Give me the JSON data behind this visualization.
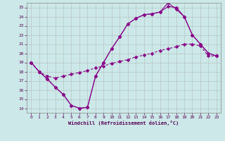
{
  "xlabel": "Windchill (Refroidissement éolien,°C)",
  "bg_color": "#cce8e8",
  "grid_color": "#aaaaaa",
  "line_color": "#880088",
  "xlim": [
    -0.5,
    23.5
  ],
  "ylim": [
    13.5,
    25.5
  ],
  "xticks": [
    0,
    1,
    2,
    3,
    4,
    5,
    6,
    7,
    8,
    9,
    10,
    11,
    12,
    13,
    14,
    15,
    16,
    17,
    18,
    19,
    20,
    21,
    22,
    23
  ],
  "yticks": [
    14,
    15,
    16,
    17,
    18,
    19,
    20,
    21,
    22,
    23,
    24,
    25
  ],
  "line1_x": [
    0,
    1,
    2,
    3,
    4,
    5,
    6,
    7,
    8,
    9,
    10,
    11,
    12,
    13,
    14,
    15,
    16,
    17,
    18,
    19,
    20,
    21,
    22,
    23
  ],
  "line1_y": [
    19.0,
    18.0,
    17.2,
    16.3,
    15.5,
    14.3,
    14.0,
    14.1,
    17.5,
    19.0,
    20.5,
    21.8,
    23.2,
    23.8,
    24.2,
    24.3,
    24.5,
    25.1,
    25.0,
    24.0,
    22.0,
    21.0,
    20.0,
    19.7
  ],
  "line2_x": [
    0,
    1,
    2,
    3,
    4,
    5,
    6,
    7,
    8,
    9,
    10,
    11,
    12,
    13,
    14,
    15,
    16,
    17,
    18,
    19,
    20,
    21,
    22,
    23
  ],
  "line2_y": [
    19.0,
    18.0,
    17.5,
    17.3,
    17.5,
    17.7,
    17.9,
    18.1,
    18.4,
    18.6,
    18.9,
    19.1,
    19.3,
    19.6,
    19.8,
    20.0,
    20.3,
    20.5,
    20.7,
    21.0,
    21.0,
    20.8,
    19.7,
    19.7
  ],
  "line3_x": [
    0,
    1,
    2,
    3,
    4,
    5,
    6,
    7,
    8,
    9,
    10,
    11,
    12,
    13,
    14,
    15,
    16,
    17,
    18,
    19,
    20,
    21,
    22,
    23
  ],
  "line3_y": [
    19.0,
    18.0,
    17.2,
    16.3,
    15.5,
    14.3,
    14.0,
    14.1,
    17.5,
    19.0,
    20.5,
    21.8,
    23.2,
    23.8,
    24.2,
    24.3,
    24.5,
    25.5,
    24.8,
    24.0,
    22.0,
    21.0,
    20.0,
    19.7
  ]
}
